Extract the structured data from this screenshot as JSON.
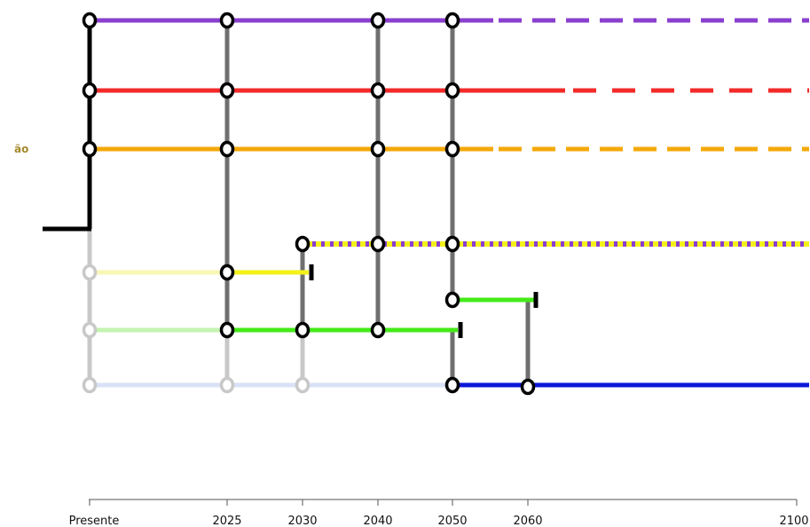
{
  "partial_label": "ão",
  "axis": {
    "ticks": [
      "Presente",
      "2025",
      "2030",
      "2040",
      "2050",
      "2060",
      "2100"
    ]
  },
  "colors": {
    "purple": "#8a3fcf",
    "red": "#f22a2a",
    "orange": "#f4a90a",
    "yellow": "#f2f21a",
    "green": "#45ea19",
    "blue": "#0d17d9",
    "gray": "#6f6f6f",
    "light_gray": "#c8c8c8",
    "black": "#000000",
    "faded_yellow": "#f8f7b4",
    "faded_green": "#c4f4b1",
    "faded_blue": "#d9e1f6"
  }
}
